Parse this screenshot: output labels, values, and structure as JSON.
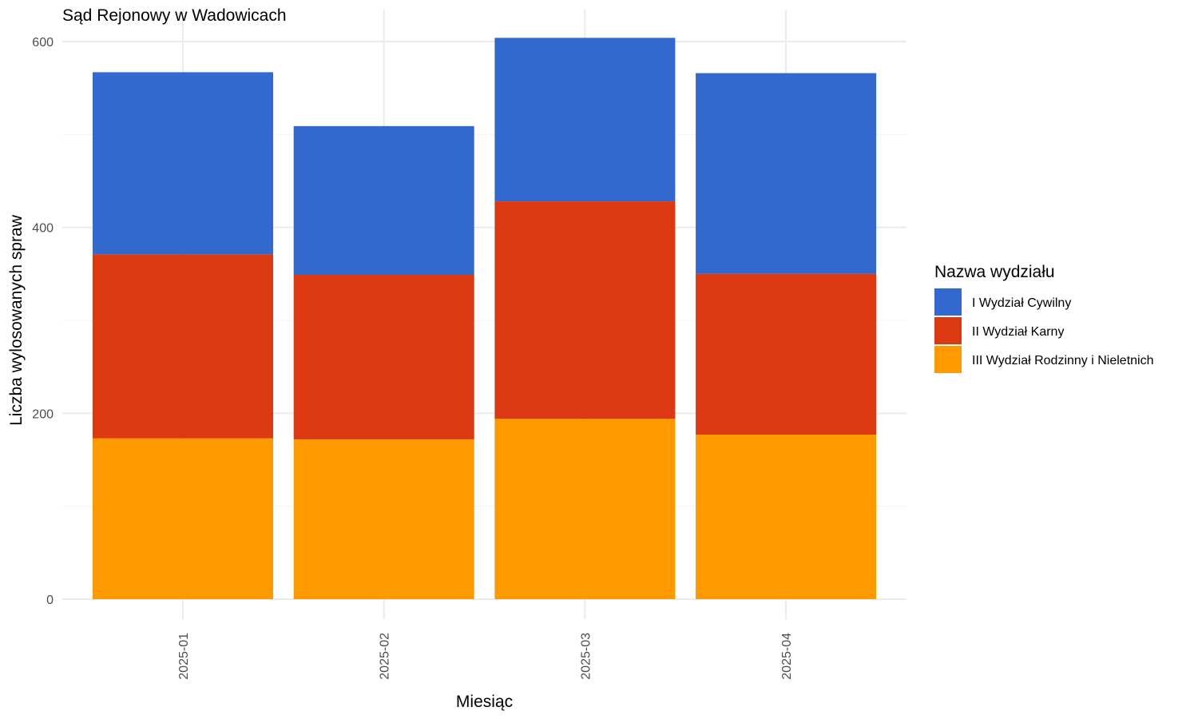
{
  "chart_data": {
    "type": "bar",
    "stacked": true,
    "title": "Sąd Rejonowy w Wadowicach",
    "xlabel": "Miesiąc",
    "ylabel": "Liczba wylosowanych spraw",
    "categories": [
      "2025-01",
      "2025-02",
      "2025-03",
      "2025-04"
    ],
    "y_ticks": [
      0,
      200,
      400,
      600
    ],
    "ylim": [
      0,
      605
    ],
    "grid": true,
    "legend": {
      "title": "Nazwa wydziału",
      "placement": "right"
    },
    "series": [
      {
        "name": "I Wydział Cywilny",
        "color": "#3369CE",
        "values": [
          196,
          160,
          176,
          216
        ]
      },
      {
        "name": "II Wydział Karny",
        "color": "#DC3912",
        "values": [
          198,
          177,
          234,
          173
        ]
      },
      {
        "name": "III Wydział Rodzinny i Nieletnich",
        "color": "#FF9900",
        "values": [
          173,
          172,
          194,
          177
        ]
      }
    ]
  }
}
